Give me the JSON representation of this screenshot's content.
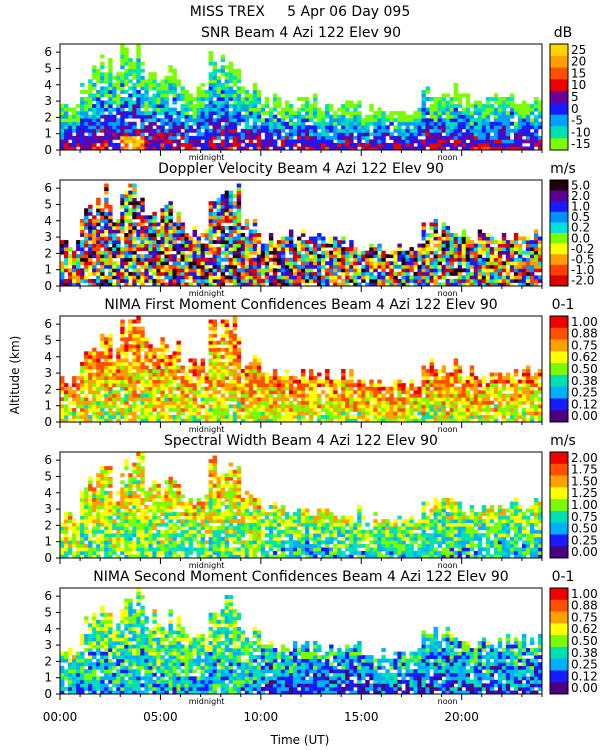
{
  "figure": {
    "header": "MISS TREX     5 Apr 06 Day 095",
    "ylabel": "Altitude (km)",
    "xlabel": "Time (UT)",
    "midnight_marker": "midnight",
    "noon_marker": "noon"
  },
  "chart_data": [
    {
      "type": "heatmap",
      "title": "SNR Beam 4 Azi 122 Elev 90",
      "unit": "dB",
      "x_range_hours": [
        0,
        24
      ],
      "ylim": [
        0,
        6.5
      ],
      "yticks": [
        "0",
        "1",
        "2",
        "3",
        "4",
        "5",
        "6"
      ],
      "xticks": [
        "00:00",
        "05:00",
        "10:00",
        "15:00",
        "20:00"
      ],
      "colorbar": {
        "labels": [
          "25",
          "20",
          "15",
          "10",
          "5",
          "0",
          "-5",
          "-10",
          "-15"
        ],
        "colors": [
          "#ffd400",
          "#ffa000",
          "#ff5000",
          "#ee0000",
          "#6a0096",
          "#1a1aff",
          "#00a0ff",
          "#00e0b4",
          "#7cfc00"
        ]
      }
    },
    {
      "type": "heatmap",
      "title": "Doppler Velocity Beam 4 Azi 122 Elev 90",
      "unit": "m/s",
      "x_range_hours": [
        0,
        24
      ],
      "ylim": [
        0,
        6.5
      ],
      "yticks": [
        "0",
        "1",
        "2",
        "3",
        "4",
        "5",
        "6"
      ],
      "xticks": [
        "00:00",
        "05:00",
        "10:00",
        "15:00",
        "20:00"
      ],
      "colorbar": {
        "labels": [
          "5.0",
          "2.0",
          "1.0",
          "0.5",
          "0.2",
          "0.0",
          "-0.2",
          "-0.5",
          "-1.0",
          "-2.0"
        ],
        "colors": [
          "#200010",
          "#5a0090",
          "#1a1aff",
          "#0090ff",
          "#00e0e0",
          "#7cfc00",
          "#ffff00",
          "#ffa000",
          "#ff4000",
          "#dd0000"
        ]
      }
    },
    {
      "type": "heatmap",
      "title": "NIMA First Moment Confidences Beam 4 Azi 122 Elev 90",
      "unit": "0-1",
      "x_range_hours": [
        0,
        24
      ],
      "ylim": [
        0,
        6.5
      ],
      "yticks": [
        "0",
        "1",
        "2",
        "3",
        "4",
        "5",
        "6"
      ],
      "xticks": [
        "00:00",
        "05:00",
        "10:00",
        "15:00",
        "20:00"
      ],
      "colorbar": {
        "labels": [
          "1.00",
          "0.88",
          "0.75",
          "0.62",
          "0.50",
          "0.38",
          "0.25",
          "0.12",
          "0.00"
        ],
        "colors": [
          "#ee0000",
          "#ff5000",
          "#ffa000",
          "#ffff00",
          "#7cfc00",
          "#00e0b4",
          "#00b0ff",
          "#1a1aff",
          "#4b0082"
        ]
      }
    },
    {
      "type": "heatmap",
      "title": "Spectral Width Beam 4 Azi 122 Elev 90",
      "unit": "m/s",
      "x_range_hours": [
        0,
        24
      ],
      "ylim": [
        0,
        6.5
      ],
      "yticks": [
        "0",
        "1",
        "2",
        "3",
        "4",
        "5",
        "6"
      ],
      "xticks": [
        "00:00",
        "05:00",
        "10:00",
        "15:00",
        "20:00"
      ],
      "colorbar": {
        "labels": [
          "2.00",
          "1.75",
          "1.50",
          "1.25",
          "1.00",
          "0.75",
          "0.50",
          "0.25",
          "0.00"
        ],
        "colors": [
          "#ee0000",
          "#ff5000",
          "#ffa000",
          "#ffff00",
          "#7cfc00",
          "#00e0b4",
          "#00b0ff",
          "#1a1aff",
          "#4b0082"
        ]
      }
    },
    {
      "type": "heatmap",
      "title": "NIMA Second Moment Confidences Beam 4 Azi 122 Elev 90",
      "unit": "0-1",
      "x_range_hours": [
        0,
        24
      ],
      "ylim": [
        0,
        6.5
      ],
      "yticks": [
        "0",
        "1",
        "2",
        "3",
        "4",
        "5",
        "6"
      ],
      "xticks": [
        "00:00",
        "05:00",
        "10:00",
        "15:00",
        "20:00"
      ],
      "colorbar": {
        "labels": [
          "1.00",
          "0.88",
          "0.75",
          "0.62",
          "0.50",
          "0.38",
          "0.25",
          "0.12",
          "0.00"
        ],
        "colors": [
          "#ee0000",
          "#ff5000",
          "#ffa000",
          "#ffff00",
          "#7cfc00",
          "#00e0b4",
          "#00b0ff",
          "#1a1aff",
          "#4b0082"
        ]
      }
    }
  ]
}
